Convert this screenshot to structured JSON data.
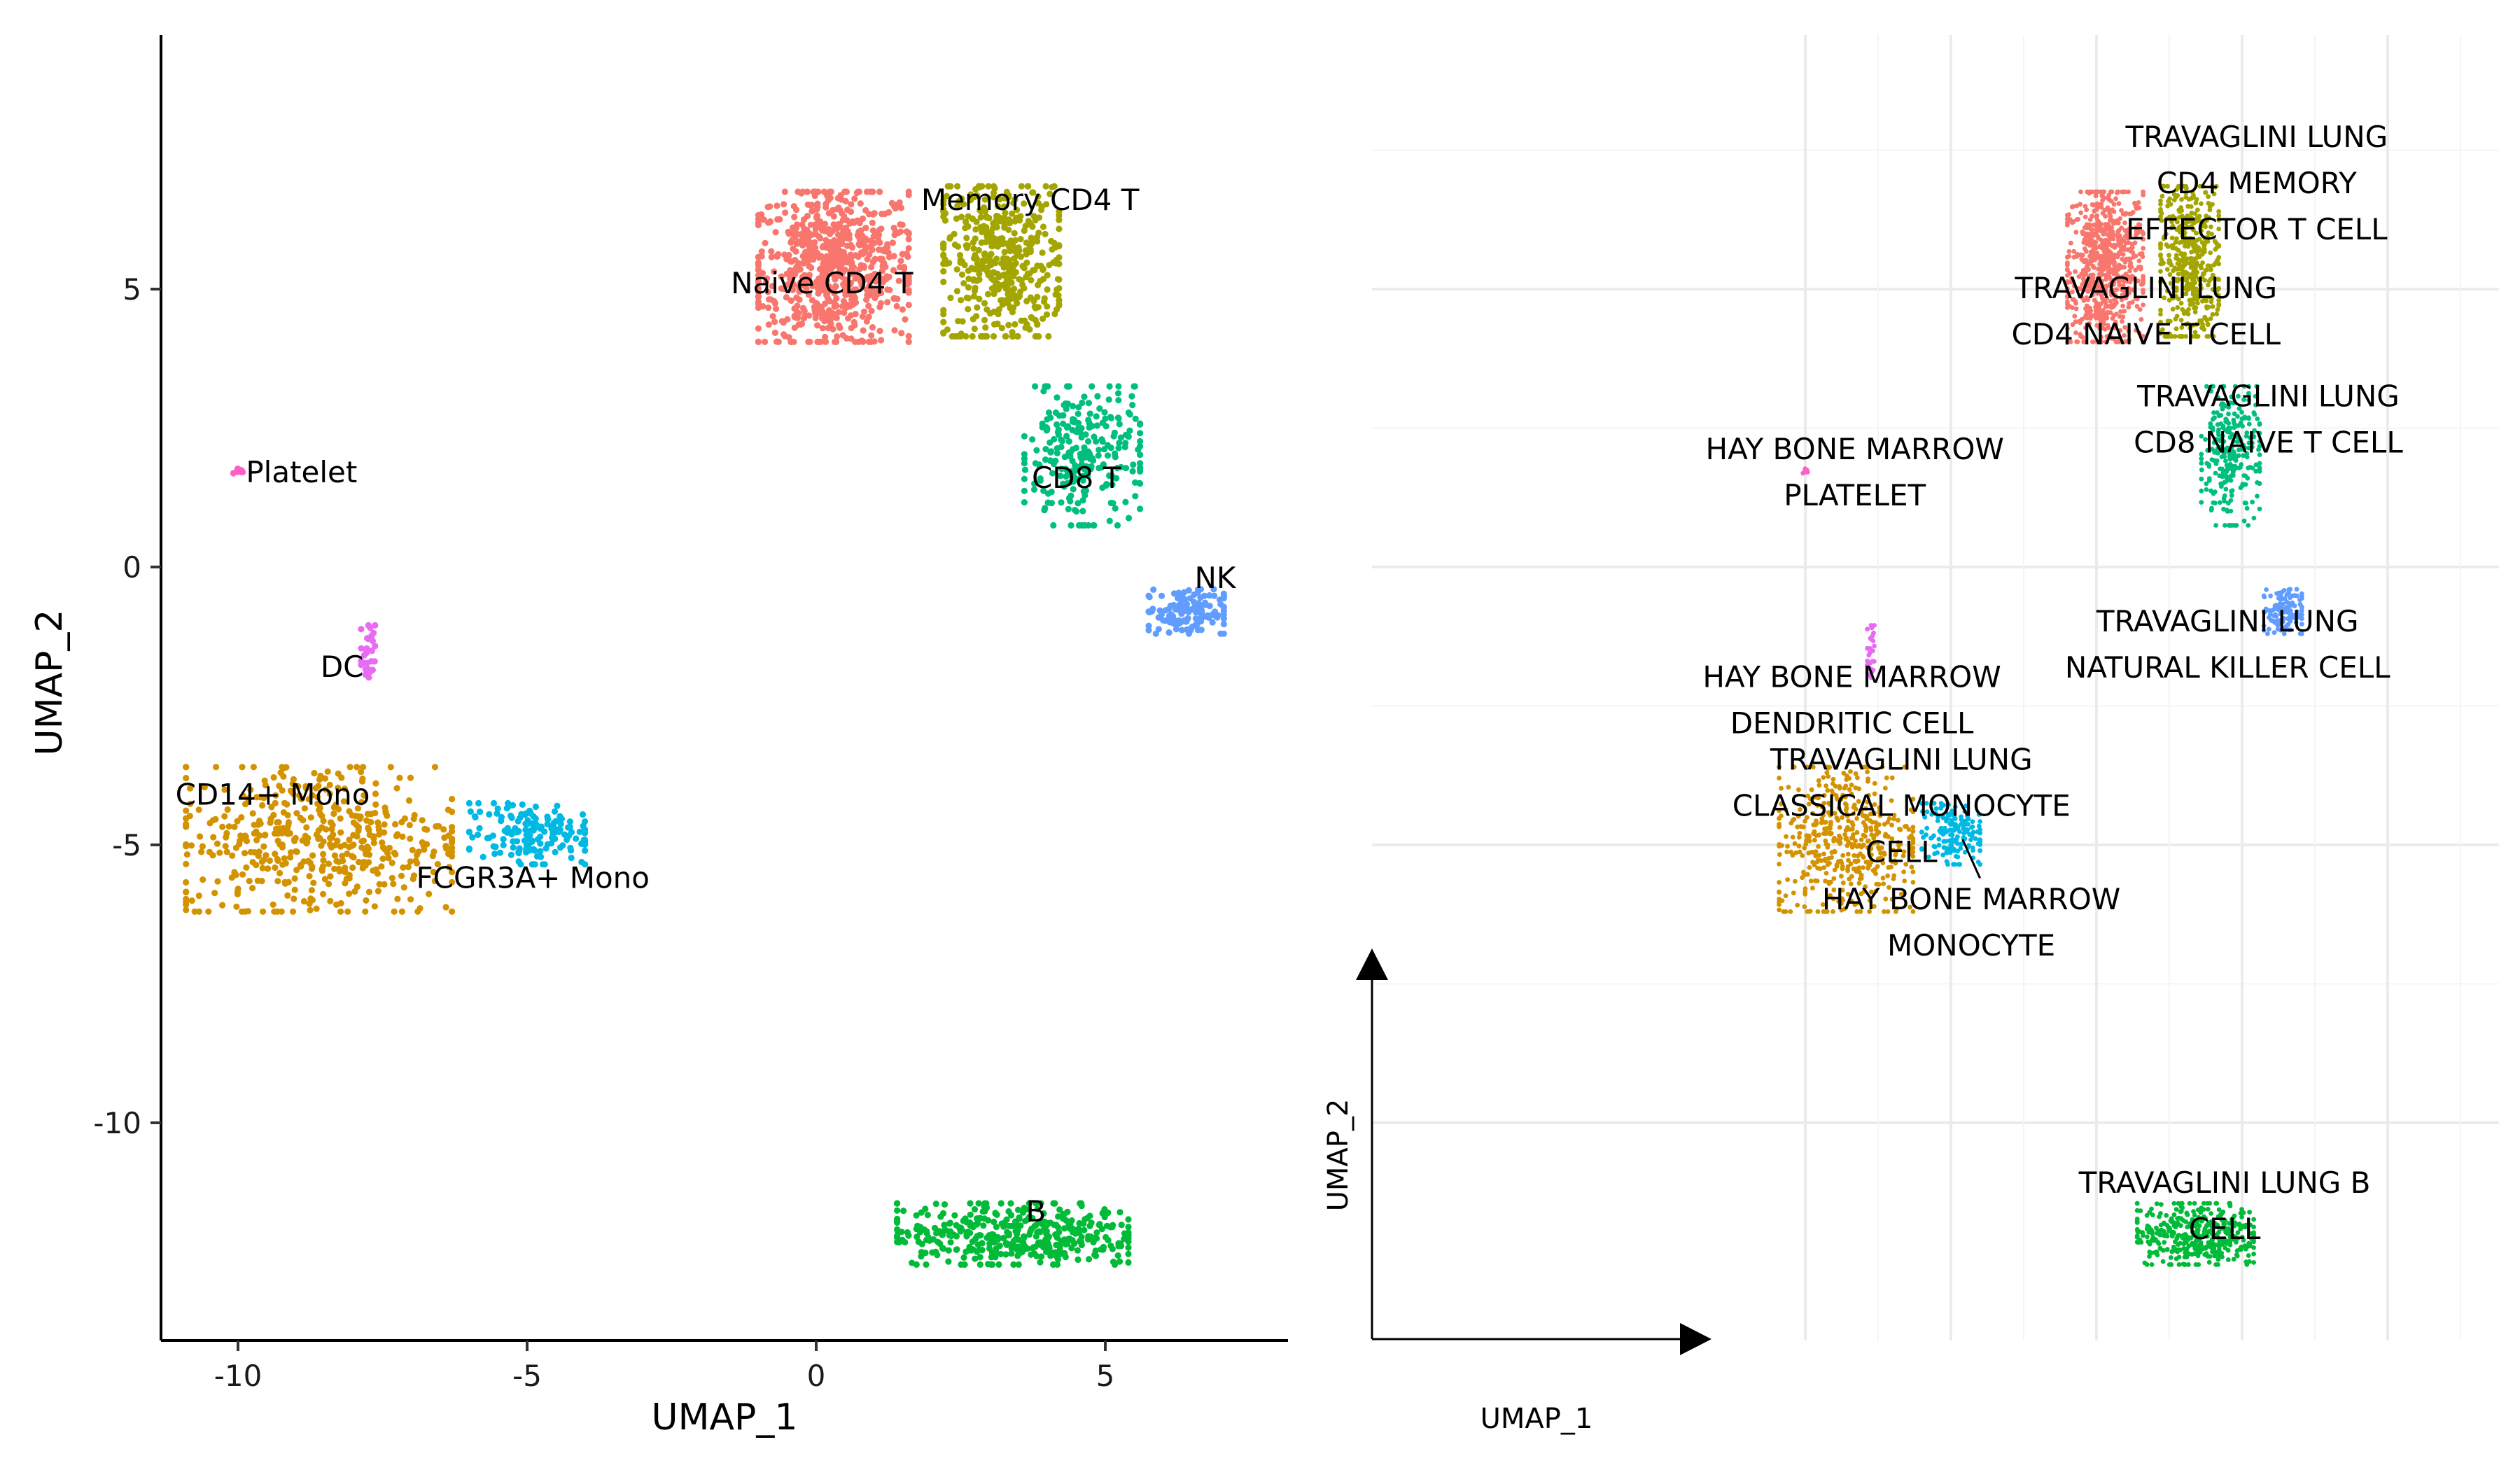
{
  "chart_data": [
    {
      "type": "scatter",
      "title": "",
      "xlabel": "UMAP_1",
      "ylabel": "UMAP_2",
      "xlim": [
        -11.3,
        8.3
      ],
      "ylim": [
        -13.9,
        9.6
      ],
      "xticks": [
        "-10",
        "-5",
        "0",
        "5"
      ],
      "yticks": [
        "5",
        "0",
        "-5",
        "-10"
      ],
      "grid": false,
      "legend": "none (cluster labels drawn on plot)",
      "clusters": [
        {
          "name": "Naive CD4 T",
          "color": "#F8766D",
          "center": [
            0.3,
            5.4
          ],
          "spread": [
            1.3,
            1.35
          ],
          "n": 700,
          "label_at": [
            0.1,
            5.1
          ]
        },
        {
          "name": "Memory CD4 T",
          "color": "#A3A500",
          "center": [
            3.2,
            5.5
          ],
          "spread": [
            1.0,
            1.35
          ],
          "n": 450,
          "label_at": [
            3.7,
            6.6
          ]
        },
        {
          "name": "CD8 T",
          "color": "#00BF7D",
          "center": [
            4.6,
            2.0
          ],
          "spread": [
            1.0,
            1.25
          ],
          "n": 260,
          "label_at": [
            4.5,
            1.6
          ]
        },
        {
          "name": "NK",
          "color": "#619CFF",
          "center": [
            6.4,
            -0.8
          ],
          "spread": [
            0.65,
            0.4
          ],
          "n": 130,
          "label_at": [
            6.9,
            -0.2
          ]
        },
        {
          "name": "Platelet",
          "color": "#FF61C3",
          "center": [
            -10.0,
            1.72
          ],
          "spread": [
            0.08,
            0.06
          ],
          "n": 10,
          "label_at": [
            -8.9,
            1.7
          ]
        },
        {
          "name": "DC",
          "color": "#E76BF3",
          "center": [
            -7.75,
            -1.6
          ],
          "spread": [
            0.12,
            0.55
          ],
          "n": 28,
          "label_at": [
            -8.2,
            -1.8
          ]
        },
        {
          "name": "CD14+ Mono",
          "color": "#D39200",
          "center": [
            -8.6,
            -4.9
          ],
          "spread": [
            2.3,
            1.3
          ],
          "n": 480,
          "label_at": [
            -9.4,
            -4.1
          ]
        },
        {
          "name": "FCGR3A+ Mono",
          "color": "#00B9E3",
          "center": [
            -5.0,
            -4.8
          ],
          "spread": [
            1.0,
            0.55
          ],
          "n": 160,
          "label_at": [
            -4.9,
            -5.6
          ]
        },
        {
          "name": "B",
          "color": "#00BA38",
          "center": [
            3.4,
            -12.0
          ],
          "spread": [
            2.0,
            0.55
          ],
          "n": 400,
          "label_at": [
            3.8,
            -11.6
          ]
        }
      ]
    },
    {
      "type": "scatter",
      "title": "",
      "xlabel": "UMAP_1",
      "ylabel": "UMAP_2",
      "xlim": [
        -11.3,
        8.3
      ],
      "ylim": [
        -13.9,
        9.6
      ],
      "grid": true,
      "axis_style": "arrow guides",
      "legend": "none (cluster labels drawn on plot)",
      "labels": [
        {
          "lines": [
            "TRAVAGLINI LUNG",
            "CD4 MEMORY",
            "EFFECTOR T CELL"
          ],
          "at": [
            5.5,
            6.9
          ],
          "color_ref": "Memory CD4 T"
        },
        {
          "lines": [
            "TRAVAGLINI LUNG",
            "CD4 NAIVE T CELL"
          ],
          "at": [
            1.7,
            4.6
          ],
          "color_ref": "Naive CD4 T"
        },
        {
          "lines": [
            "TRAVAGLINI LUNG",
            "CD8 NAIVE T CELL"
          ],
          "at": [
            5.9,
            2.65
          ],
          "color_ref": "CD8 T"
        },
        {
          "lines": [
            "HAY BONE MARROW",
            "PLATELET"
          ],
          "at": [
            -8.3,
            1.7
          ],
          "color_ref": "Platelet"
        },
        {
          "lines": [
            "TRAVAGLINI LUNG",
            "NATURAL KILLER CELL"
          ],
          "at": [
            4.5,
            -1.4
          ],
          "color_ref": "NK"
        },
        {
          "lines": [
            "HAY BONE MARROW",
            "DENDRITIC CELL"
          ],
          "at": [
            -8.4,
            -2.4
          ],
          "color_ref": "DC"
        },
        {
          "lines": [
            "TRAVAGLINI LUNG",
            "CLASSICAL MONOCYTE",
            "CELL"
          ],
          "at": [
            -6.7,
            -4.3
          ],
          "color_ref": "CD14+ Mono"
        },
        {
          "lines": [
            "HAY BONE MARROW",
            "MONOCYTE"
          ],
          "at": [
            -4.3,
            -6.4
          ],
          "color_ref": "FCGR3A+ Mono",
          "leader": [
            [
              -4.0,
              -5.6
            ],
            [
              -4.6,
              -4.9
            ]
          ]
        },
        {
          "lines": [
            "TRAVAGLINI LUNG B",
            "CELL"
          ],
          "at": [
            4.4,
            -11.5
          ],
          "color_ref": "B"
        }
      ]
    }
  ]
}
